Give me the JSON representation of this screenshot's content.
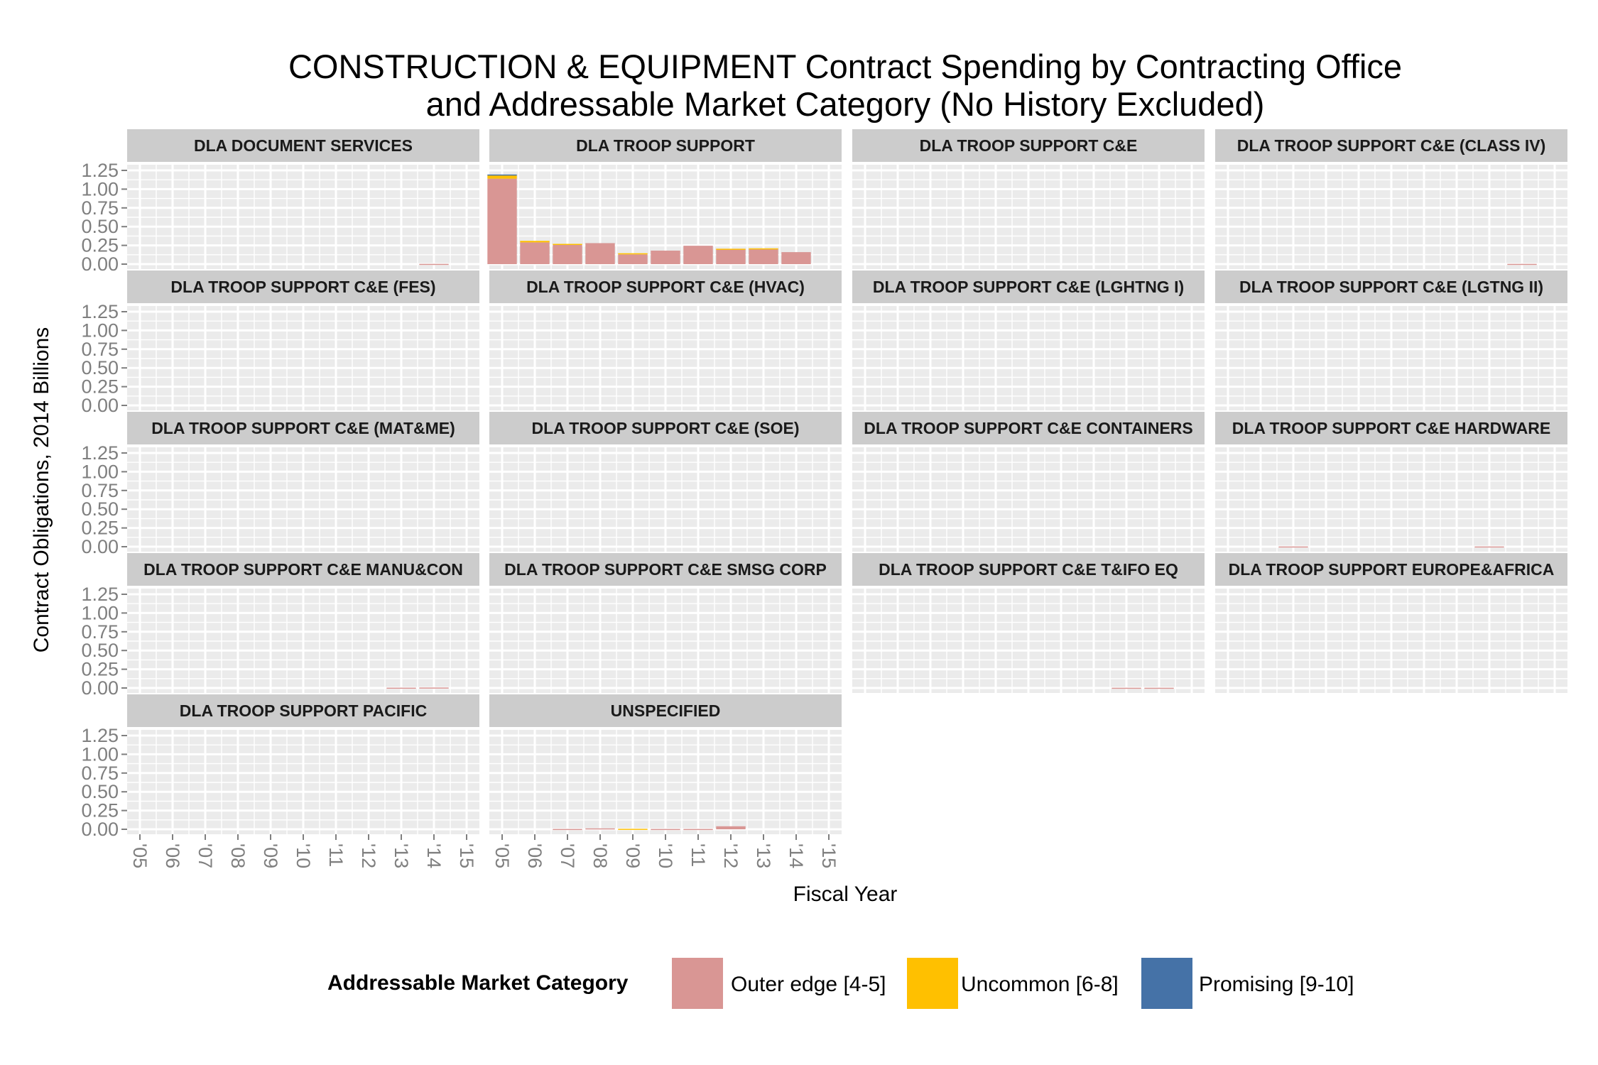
{
  "chart_data": {
    "type": "bar",
    "stacked": true,
    "faceted": true,
    "title": [
      "CONSTRUCTION & EQUIPMENT Contract Spending by Contracting Office",
      "and Addressable Market Category (No History Excluded)"
    ],
    "xlabel": "Fiscal Year",
    "ylabel": "Contract Obligations, 2014 Billions",
    "x_ticks": [
      "'05",
      "'06",
      "'07",
      "'08",
      "'09",
      "'10",
      "'11",
      "'12",
      "'13",
      "'14",
      "'15"
    ],
    "y_ticks": [
      "0.00",
      "0.25",
      "0.50",
      "0.75",
      "1.00",
      "1.25"
    ],
    "ylim": [
      0,
      1.25
    ],
    "grid": true,
    "legend": {
      "title": "Addressable Market Category",
      "position": "bottom",
      "entries": [
        {
          "label": "Outer edge [4-5]",
          "color": "#d99694"
        },
        {
          "label": "Uncommon [6-8]",
          "color": "#ffc000"
        },
        {
          "label": "Promising [9-10]",
          "color": "#4572a7"
        }
      ]
    },
    "series_colors": {
      "outer": "#d99694",
      "uncommon": "#ffc000",
      "promising": "#4572a7"
    },
    "panel_bg": "#ebebeb",
    "strip_bg": "#cccccc",
    "panels": [
      {
        "name": "DLA DOCUMENT SERVICES",
        "bars": [
          {
            "x": "'14",
            "outer": 0.003
          }
        ]
      },
      {
        "name": "DLA TROOP SUPPORT",
        "bars": [
          {
            "x": "'05",
            "outer": 1.14,
            "uncommon": 0.045,
            "promising": 0.01
          },
          {
            "x": "'06",
            "outer": 0.29,
            "uncommon": 0.02
          },
          {
            "x": "'07",
            "outer": 0.26,
            "uncommon": 0.01
          },
          {
            "x": "'08",
            "outer": 0.28
          },
          {
            "x": "'09",
            "outer": 0.13,
            "uncommon": 0.015
          },
          {
            "x": "'10",
            "outer": 0.18
          },
          {
            "x": "'11",
            "outer": 0.245
          },
          {
            "x": "'12",
            "outer": 0.195,
            "uncommon": 0.01
          },
          {
            "x": "'13",
            "outer": 0.2,
            "uncommon": 0.01
          },
          {
            "x": "'14",
            "outer": 0.16
          }
        ]
      },
      {
        "name": "DLA TROOP SUPPORT C&E",
        "bars": []
      },
      {
        "name": "DLA TROOP SUPPORT C&E (CLASS IV)",
        "bars": [
          {
            "x": "'14",
            "outer": 0.003
          }
        ]
      },
      {
        "name": "DLA TROOP SUPPORT C&E (FES)",
        "bars": []
      },
      {
        "name": "DLA TROOP SUPPORT C&E (HVAC)",
        "bars": []
      },
      {
        "name": "DLA TROOP SUPPORT C&E (LGHTNG I)",
        "bars": []
      },
      {
        "name": "DLA TROOP SUPPORT C&E (LGTNG II)",
        "bars": []
      },
      {
        "name": "DLA TROOP SUPPORT C&E (MAT&ME)",
        "bars": []
      },
      {
        "name": "DLA TROOP SUPPORT C&E (SOE)",
        "bars": []
      },
      {
        "name": "DLA TROOP SUPPORT C&E CONTAINERS",
        "bars": []
      },
      {
        "name": "DLA TROOP SUPPORT C&E HARDWARE",
        "bars": [
          {
            "x": "'07",
            "outer": 0.003
          },
          {
            "x": "'13",
            "outer": 0.003
          }
        ]
      },
      {
        "name": "DLA TROOP SUPPORT C&E MANU&CON",
        "bars": [
          {
            "x": "'13",
            "outer": 0.004
          },
          {
            "x": "'14",
            "outer": 0.006
          }
        ]
      },
      {
        "name": "DLA TROOP SUPPORT C&E SMSG CORP",
        "bars": []
      },
      {
        "name": "DLA TROOP SUPPORT C&E T&IFO EQ",
        "bars": [
          {
            "x": "'13",
            "outer": 0.003
          },
          {
            "x": "'14",
            "outer": 0.003
          }
        ]
      },
      {
        "name": "DLA TROOP SUPPORT EUROPE&AFRICA",
        "bars": []
      },
      {
        "name": "DLA TROOP SUPPORT PACIFIC",
        "bars": []
      },
      {
        "name": "UNSPECIFIED",
        "bars": [
          {
            "x": "'07",
            "outer": 0.004
          },
          {
            "x": "'08",
            "outer": 0.012
          },
          {
            "x": "'09",
            "uncommon": 0.006
          },
          {
            "x": "'10",
            "outer": 0.004
          },
          {
            "x": "'11",
            "outer": 0.004
          },
          {
            "x": "'12",
            "outer": 0.04
          }
        ]
      }
    ]
  }
}
